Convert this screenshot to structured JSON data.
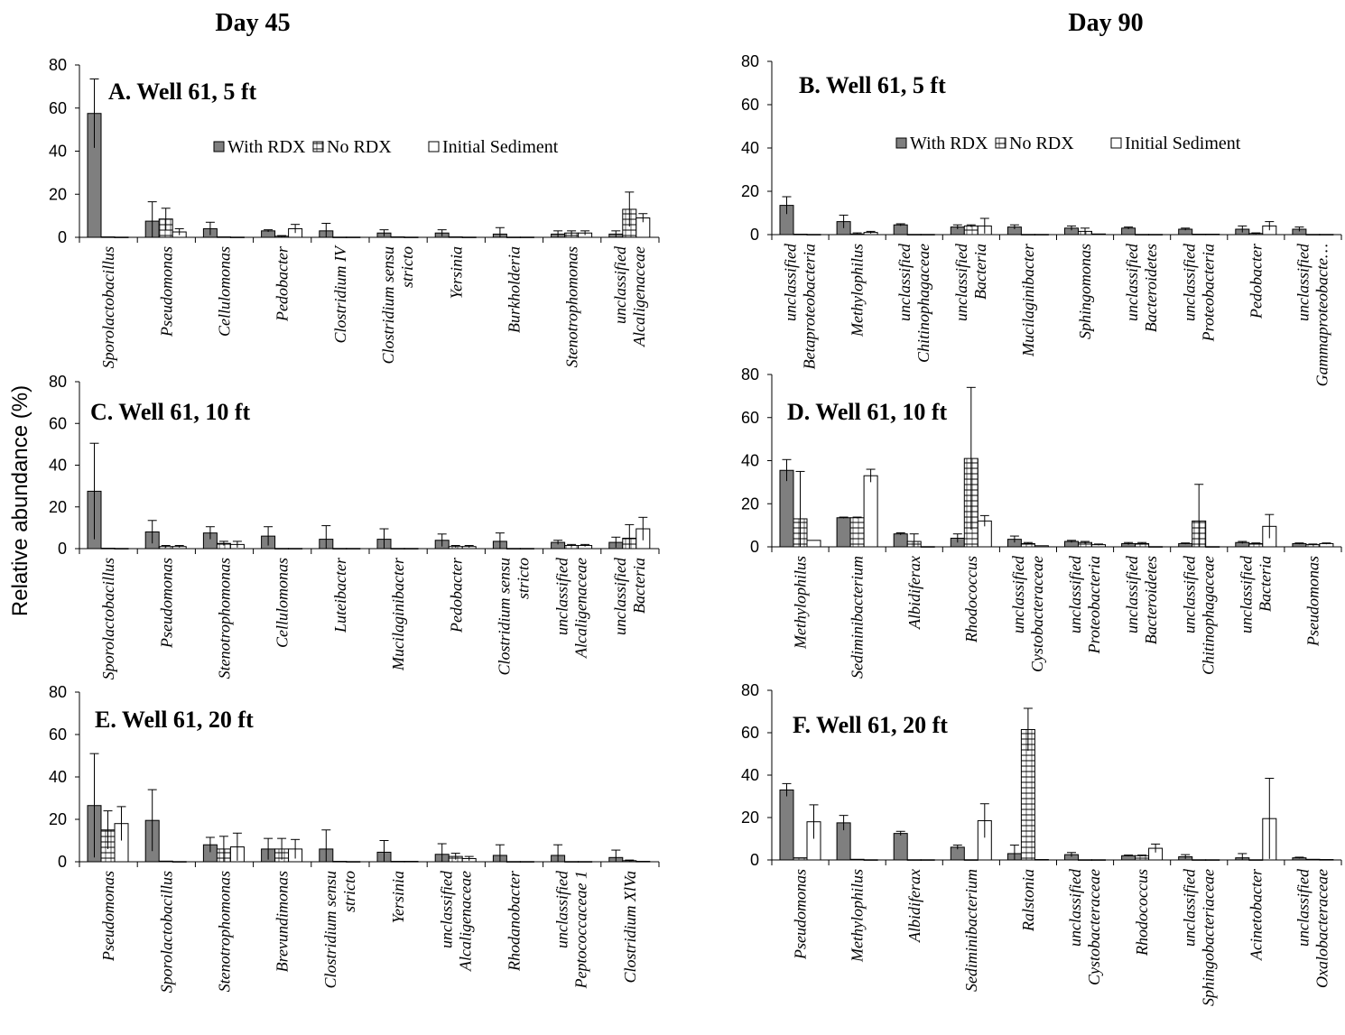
{
  "figure": {
    "col_titles": [
      "Day 45",
      "Day 90"
    ],
    "ylabel": "Relative abundance (%)",
    "legend": [
      "With RDX",
      "No RDX",
      "Initial Sediment"
    ],
    "colors": {
      "with_rdx": "#7f7f7f",
      "no_rdx": "#ffffff",
      "initial": "#ffffff",
      "stroke": "#000000"
    }
  },
  "chart_data": [
    {
      "type": "bar",
      "title": "A. Well 61, 5 ft",
      "ylim": [
        0,
        80
      ],
      "yticks": [
        0,
        20,
        40,
        60,
        80
      ],
      "show_legend": true,
      "categories": [
        "Sporolactobacillus",
        "Pseudomonas",
        "Cellulomonas",
        "Pedobacter",
        "Clostridium IV",
        "Clostridium sensu stricto",
        "Yersinia",
        "Burkholderia",
        "Stenotrophomonas",
        "unclassified Alcaligenaceae"
      ],
      "series": [
        {
          "name": "With RDX",
          "values": [
            57.5,
            7.5,
            4,
            3,
            3,
            2,
            2,
            1.5,
            1.5,
            1.5
          ],
          "errors": [
            16,
            9,
            3,
            0.5,
            3.5,
            1.5,
            1.5,
            3,
            1.5,
            1.5
          ]
        },
        {
          "name": "No RDX",
          "values": [
            0.2,
            8.5,
            0.2,
            0.5,
            0.1,
            0.2,
            0.2,
            0.1,
            2,
            13
          ],
          "errors": [
            0,
            5,
            0,
            0.3,
            0,
            0,
            0,
            0,
            1,
            8
          ]
        },
        {
          "name": "Initial Sediment",
          "values": [
            0.1,
            2.5,
            0.1,
            4,
            0.1,
            0.1,
            0.1,
            0.1,
            2,
            9
          ],
          "errors": [
            0,
            1.5,
            0,
            2,
            0,
            0,
            0,
            0,
            1,
            2
          ]
        }
      ]
    },
    {
      "type": "bar",
      "title": "B. Well 61, 5 ft",
      "ylim": [
        0,
        80
      ],
      "yticks": [
        0,
        20,
        40,
        60,
        80
      ],
      "show_legend": true,
      "categories": [
        "unclassified Betaproteobacteria",
        "Methylophilus",
        "unclassified Chitinophagaceae",
        "unclassified Bacteria",
        "Mucilaginibacter",
        "Sphingomonas",
        "unclassified Bacteroidetes",
        "unclassified Proteobacteria",
        "Pedobacter",
        "unclassified Gammaproteobacte…"
      ],
      "series": [
        {
          "name": "With RDX",
          "values": [
            13.5,
            6,
            4.5,
            3.5,
            3.5,
            3,
            3,
            2.5,
            2.5,
            2.5
          ],
          "errors": [
            4,
            3,
            0.5,
            1,
            1,
            1,
            0.5,
            0.5,
            1.5,
            1
          ]
        },
        {
          "name": "No RDX",
          "values": [
            0.2,
            0.3,
            0.1,
            4,
            0.1,
            1.5,
            0.1,
            0.2,
            0.5,
            0.1
          ],
          "errors": [
            0,
            0.5,
            0,
            0.5,
            0,
            1.5,
            0,
            0,
            0.3,
            0
          ]
        },
        {
          "name": "Initial Sediment",
          "values": [
            0.1,
            1,
            0.1,
            4,
            0.1,
            0.3,
            0.1,
            0.2,
            4,
            0.1
          ],
          "errors": [
            0,
            0.5,
            0,
            3.5,
            0,
            0,
            0,
            0,
            2,
            0
          ]
        }
      ]
    },
    {
      "type": "bar",
      "title": "C. Well 61, 10 ft",
      "ylim": [
        0,
        80
      ],
      "yticks": [
        0,
        20,
        40,
        60,
        80
      ],
      "show_legend": false,
      "categories": [
        "Sporolactobacillus",
        "Pseudomonas",
        "Stenotrophomonas",
        "Cellulomonas",
        "Luteibacter",
        "Mucilaginibacter",
        "Pedobacter",
        "Clostridium sensu stricto",
        "unclassified Alcaligenaceae",
        "unclassified Bacteria"
      ],
      "series": [
        {
          "name": "With RDX",
          "values": [
            27.5,
            8,
            7.5,
            6,
            4.5,
            4.5,
            4,
            3.5,
            3,
            3
          ],
          "errors": [
            23,
            5.5,
            3,
            4.5,
            6.5,
            5,
            3,
            4,
            1,
            2.5
          ]
        },
        {
          "name": "No RDX",
          "values": [
            0.2,
            1,
            2.5,
            0.1,
            0.1,
            0.1,
            1,
            0.1,
            1.5,
            5
          ],
          "errors": [
            0,
            0.5,
            1,
            0,
            0,
            0,
            0.5,
            0,
            0.5,
            6.5
          ]
        },
        {
          "name": "Initial Sediment",
          "values": [
            0.1,
            1,
            2,
            0.1,
            0.1,
            0.1,
            1,
            0.1,
            1.5,
            9.5
          ],
          "errors": [
            0,
            0.5,
            1.5,
            0,
            0,
            0,
            0.5,
            0,
            0.5,
            5.5
          ]
        }
      ]
    },
    {
      "type": "bar",
      "title": "D. Well 61, 10 ft",
      "ylim": [
        0,
        80
      ],
      "yticks": [
        0,
        20,
        40,
        60,
        80
      ],
      "show_legend": false,
      "categories": [
        "Methylophilus",
        "Sediminibacterium",
        "Albidiferax",
        "Rhodococcus",
        "unclassified Cystobacteraceae",
        "unclassified Proteobacteria",
        "unclassified Bacteroidetes",
        "unclassified Chitinophagaceae",
        "unclassified Bacteria",
        "Pseudomonas"
      ],
      "series": [
        {
          "name": "With RDX",
          "values": [
            35.5,
            13.5,
            6,
            4,
            3.5,
            2.5,
            1.5,
            1.5,
            2,
            1.5
          ],
          "errors": [
            5,
            0.3,
            0.5,
            2,
            1.5,
            0.5,
            0.5,
            0.3,
            0.5,
            0.3
          ]
        },
        {
          "name": "No RDX",
          "values": [
            13,
            13.5,
            2.5,
            41,
            1.5,
            2,
            1.5,
            12,
            1.5,
            1
          ],
          "errors": [
            22,
            0.3,
            3.5,
            33,
            0.5,
            0.5,
            0.5,
            17,
            0.3,
            0.3
          ]
        },
        {
          "name": "Initial Sediment",
          "values": [
            3,
            33,
            0.1,
            12,
            0.5,
            1,
            0.1,
            0.1,
            9.5,
            1.5
          ],
          "errors": [
            0,
            3,
            0,
            2.5,
            0,
            0.3,
            0,
            0,
            5.5,
            0.3
          ]
        }
      ]
    },
    {
      "type": "bar",
      "title": "E. Well 61, 20 ft",
      "ylim": [
        0,
        80
      ],
      "yticks": [
        0,
        20,
        40,
        60,
        80
      ],
      "show_legend": false,
      "categories": [
        "Pseudomonas",
        "Sporolactobacillus",
        "Stenotrophomonas",
        "Brevundimonas",
        "Clostridium sensu stricto",
        "Yersinia",
        "unclassified Alcaligenaceae",
        "Rhodanobacter",
        "unclassified Peptococcaceae 1",
        "Clostridium XlVa"
      ],
      "series": [
        {
          "name": "With RDX",
          "values": [
            26.5,
            19.5,
            8,
            6,
            6,
            4.5,
            3.5,
            3,
            3,
            2
          ],
          "errors": [
            24.5,
            14.5,
            3.5,
            5,
            9,
            5.5,
            5,
            5,
            5,
            3.5
          ]
        },
        {
          "name": "No RDX",
          "values": [
            15,
            0.3,
            6,
            6,
            0.2,
            0.2,
            2.5,
            0.1,
            0.1,
            0.5
          ],
          "errors": [
            9,
            0,
            6,
            5,
            0,
            0,
            1.5,
            0,
            0,
            0.3
          ]
        },
        {
          "name": "Initial Sediment",
          "values": [
            18,
            0.1,
            7,
            6,
            0.1,
            0.2,
            1.5,
            0.1,
            0.1,
            0.2
          ],
          "errors": [
            8,
            0,
            6.5,
            4.5,
            0,
            0,
            1,
            0,
            0,
            0
          ]
        }
      ]
    },
    {
      "type": "bar",
      "title": "F. Well 61, 20 ft",
      "ylim": [
        0,
        80
      ],
      "yticks": [
        0,
        20,
        40,
        60,
        80
      ],
      "show_legend": false,
      "categories": [
        "Pseudomonas",
        "Methylophilus",
        "Albidiferax",
        "Sediminibacterium",
        "Ralstonia",
        "unclassified Cystobacteraceae",
        "Rhodococcus",
        "unclassified Sphingobacteriaceae",
        "Acinetobacter",
        "unclassified Oxalobacteraceae"
      ],
      "series": [
        {
          "name": "With RDX",
          "values": [
            33,
            17.5,
            12.5,
            6,
            3,
            2.5,
            2,
            1.5,
            1,
            1
          ],
          "errors": [
            3,
            3.5,
            1,
            1,
            4,
            1,
            0.3,
            1,
            2,
            0.3
          ]
        },
        {
          "name": "No RDX",
          "values": [
            1,
            0.3,
            0.1,
            0.1,
            61.5,
            0.1,
            2,
            0.1,
            0.1,
            0.3
          ],
          "errors": [
            0,
            0,
            0,
            0,
            10,
            0,
            0.3,
            0,
            0,
            0
          ]
        },
        {
          "name": "Initial Sediment",
          "values": [
            18,
            0.1,
            0.1,
            18.5,
            0.2,
            0.1,
            5.5,
            0.1,
            19.5,
            0.2
          ],
          "errors": [
            8,
            0,
            0,
            8,
            0,
            0,
            2,
            0,
            19,
            0
          ]
        }
      ]
    }
  ]
}
